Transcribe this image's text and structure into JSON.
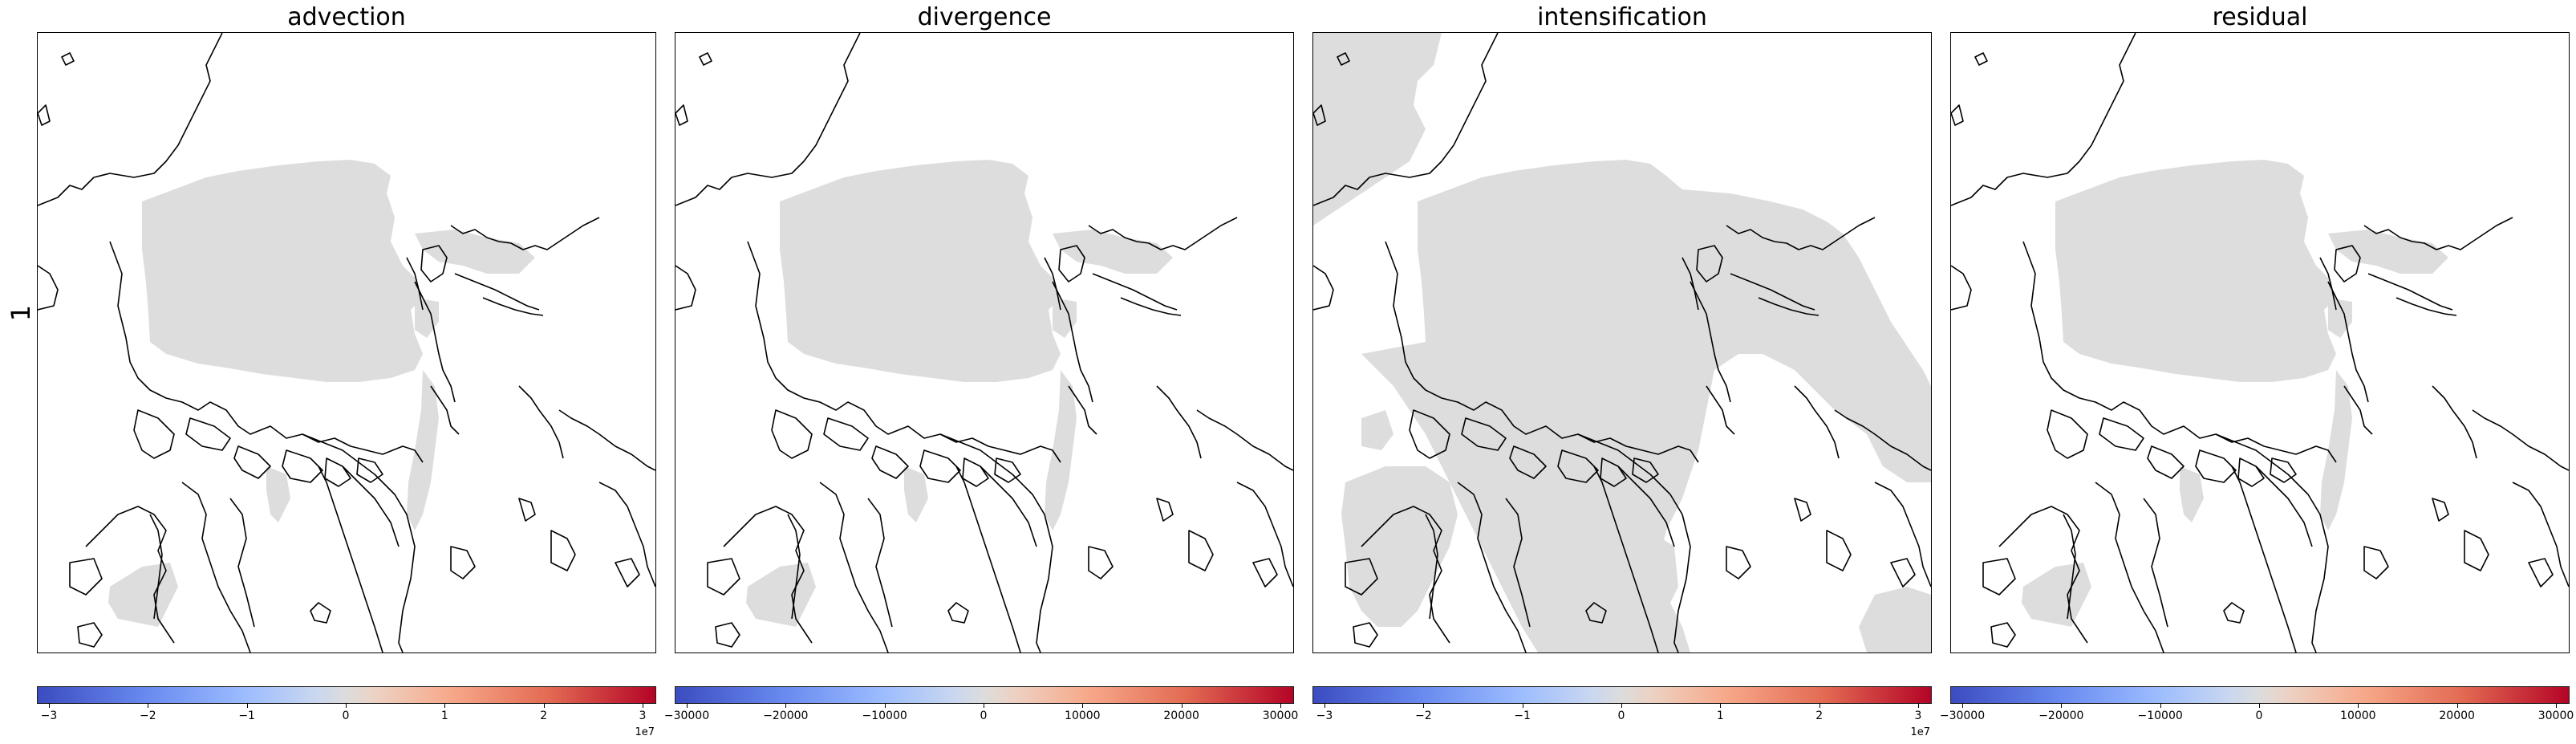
{
  "row_label": "1",
  "colors": {
    "sea_ice_mask": "#dddddd",
    "coastline": "#000000",
    "background": "#ffffff"
  },
  "panels": [
    {
      "title": "advection",
      "ticks": [
        "−3",
        "−2",
        "−1",
        "0",
        "1",
        "2",
        "3"
      ],
      "exponent": "1e7",
      "ice_extent": "arctic"
    },
    {
      "title": "divergence",
      "ticks": [
        "−30000",
        "−20000",
        "−10000",
        "0",
        "10000",
        "20000",
        "30000"
      ],
      "exponent": "",
      "ice_extent": "arctic"
    },
    {
      "title": "intensification",
      "ticks": [
        "−3",
        "−2",
        "−1",
        "0",
        "1",
        "2",
        "3"
      ],
      "exponent": "1e7",
      "ice_extent": "broad"
    },
    {
      "title": "residual",
      "ticks": [
        "−30000",
        "−20000",
        "−10000",
        "0",
        "10000",
        "20000",
        "30000"
      ],
      "exponent": "",
      "ice_extent": "arctic"
    }
  ],
  "colorbar": {
    "colormap": "coolwarm"
  }
}
